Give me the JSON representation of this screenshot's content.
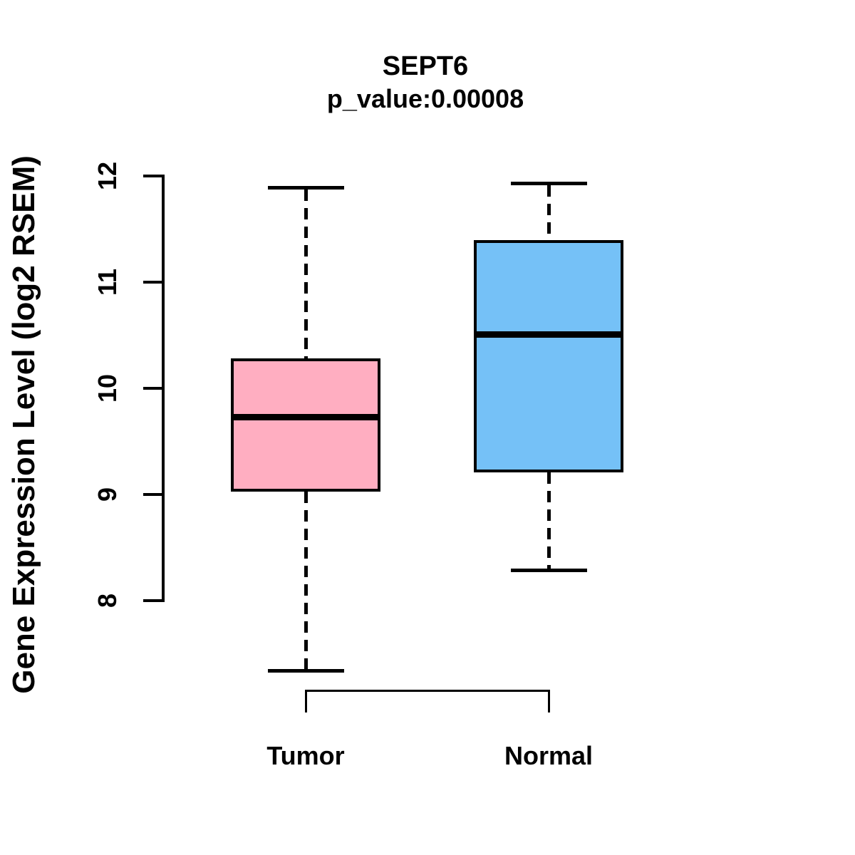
{
  "figure": {
    "title": "SEPT6",
    "subtitle": "p_value:0.00008",
    "ylabel": "Gene Expression Level (log2 RSEM)"
  },
  "chart_data": {
    "type": "boxplot",
    "title": "SEPT6",
    "subtitle": "p_value:0.00008",
    "xlabel": "",
    "ylabel": "Gene Expression Level (log2 RSEM)",
    "axis_ticks": [
      8,
      9,
      10,
      11,
      12
    ],
    "axis_range": [
      8,
      12
    ],
    "grid": false,
    "legend": "none",
    "categories": [
      "Tumor",
      "Normal"
    ],
    "series": [
      {
        "name": "Tumor",
        "box_color": "#FFAEC1",
        "whisker_low": 7.34,
        "q1": 9.04,
        "median": 9.73,
        "q3": 10.27,
        "whisker_high": 11.89
      },
      {
        "name": "Normal",
        "box_color": "#75C1F7",
        "whisker_low": 8.29,
        "q1": 9.22,
        "median": 10.51,
        "q3": 11.38,
        "whisker_high": 11.93
      }
    ],
    "annotations": {
      "comparison_bracket_between": [
        "Tumor",
        "Normal"
      ]
    },
    "line_color": "#000000",
    "background_color": "#FFFFFF"
  }
}
